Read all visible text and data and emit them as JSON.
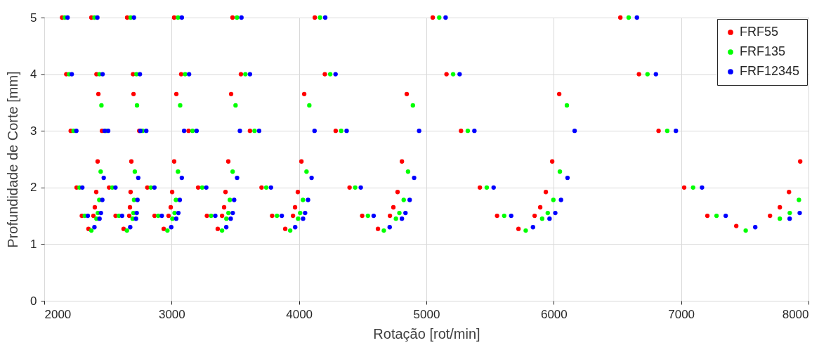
{
  "chart_data": {
    "type": "scatter",
    "xlabel": "Rotação [rot/min]",
    "ylabel": "Profundidade de Corte [mm]",
    "xlim": [
      2000,
      8000
    ],
    "xticks": [
      2000,
      3000,
      4000,
      5000,
      6000,
      7000,
      8000
    ],
    "ylim": [
      0,
      5
    ],
    "yticks": [
      0,
      1,
      2,
      3,
      4,
      5
    ],
    "grid": true,
    "legend": "top right",
    "marker": "circle",
    "series": [
      {
        "name": "FRF55",
        "color": "#ff0000",
        "x": [
          2140,
          2173,
          2208,
          2254,
          2295,
          2347,
          2386,
          2397,
          2408,
          2419,
          2425,
          2370,
          2410,
          2453,
          2509,
          2560,
          2623,
          2667,
          2673,
          2678,
          2684,
          2701,
          2651,
          2697,
          2746,
          2809,
          2866,
          2938,
          2976,
          2993,
          3004,
          3020,
          3037,
          3020,
          3075,
          3133,
          3208,
          3277,
          3362,
          3396,
          3412,
          3423,
          3445,
          3467,
          3478,
          3544,
          3615,
          3706,
          3789,
          3892,
          3953,
          3969,
          3991,
          4019,
          4041,
          4124,
          4203,
          4288,
          4397,
          4496,
          4620,
          4714,
          4741,
          4774,
          4808,
          4846,
          5050,
          5158,
          5272,
          5420,
          5555,
          5723,
          5850,
          5894,
          5938,
          5988,
          6043,
          6523,
          6669,
          6823,
          7024,
          7206,
          7433,
          7698,
          7775,
          7847,
          7935
        ],
        "values": [
          5,
          4,
          3,
          2,
          1.5,
          1.27,
          1.5,
          1.65,
          1.92,
          2.46,
          3.65,
          5,
          4,
          3,
          2,
          1.5,
          1.27,
          1.5,
          1.65,
          1.92,
          2.46,
          3.65,
          5,
          4,
          3,
          2,
          1.5,
          1.27,
          1.5,
          1.65,
          1.92,
          2.46,
          3.65,
          5,
          4,
          3,
          2,
          1.5,
          1.27,
          1.5,
          1.65,
          1.92,
          2.46,
          3.65,
          5,
          4,
          3,
          2,
          1.5,
          1.27,
          1.5,
          1.65,
          1.92,
          2.46,
          3.65,
          5,
          4,
          3,
          2,
          1.5,
          1.27,
          1.5,
          1.65,
          1.92,
          2.46,
          3.65,
          5,
          4,
          3,
          2,
          1.5,
          1.27,
          1.5,
          1.65,
          1.92,
          2.46,
          3.65,
          5,
          4,
          3,
          2,
          1.5,
          1.32,
          1.5,
          1.65,
          1.92,
          2.46
        ]
      },
      {
        "name": "FRF135",
        "color": "#00ff00",
        "x": [
          2161,
          2195,
          2230,
          2277,
          2318,
          2370,
          2410,
          2421,
          2432,
          2443,
          2449,
          2394,
          2434,
          2484,
          2534,
          2586,
          2649,
          2694,
          2700,
          2705,
          2711,
          2728,
          2678,
          2724,
          2773,
          2837,
          2895,
          2967,
          3006,
          3023,
          3034,
          3050,
          3067,
          3050,
          3106,
          3164,
          3240,
          3310,
          3396,
          3430,
          3446,
          3457,
          3479,
          3502,
          3513,
          3579,
          3651,
          3743,
          3827,
          3931,
          3993,
          4009,
          4031,
          4059,
          4081,
          4165,
          4245,
          4331,
          4441,
          4541,
          4666,
          4761,
          4788,
          4822,
          4856,
          4894,
          5101,
          5210,
          5325,
          5474,
          5611,
          5780,
          5909,
          5953,
          5997,
          6048,
          6103,
          6588,
          6736,
          6891,
          7094,
          7278,
          7507,
          7775,
          7853,
          7925
        ],
        "values": [
          5,
          4,
          3,
          2,
          1.5,
          1.24,
          1.45,
          1.55,
          1.78,
          2.28,
          3.45,
          5,
          4,
          3,
          2,
          1.5,
          1.24,
          1.45,
          1.55,
          1.78,
          2.28,
          3.45,
          5,
          4,
          3,
          2,
          1.5,
          1.24,
          1.45,
          1.55,
          1.78,
          2.28,
          3.45,
          5,
          4,
          3,
          2,
          1.5,
          1.24,
          1.45,
          1.55,
          1.78,
          2.28,
          3.45,
          5,
          4,
          3,
          2,
          1.5,
          1.24,
          1.45,
          1.55,
          1.78,
          2.28,
          3.45,
          5,
          4,
          3,
          2,
          1.5,
          1.24,
          1.45,
          1.55,
          1.78,
          2.28,
          3.45,
          5,
          4,
          3,
          2,
          1.5,
          1.24,
          1.45,
          1.55,
          1.78,
          2.28,
          3.45,
          5,
          4,
          3,
          2,
          1.5,
          1.24,
          1.45,
          1.55,
          1.78
        ]
      },
      {
        "name": "FRF12345",
        "color": "#0000ff",
        "x": [
          2183,
          2216,
          2252,
          2299,
          2342,
          2394,
          2434,
          2445,
          2456,
          2467,
          2474,
          2417,
          2458,
          2502,
          2559,
          2611,
          2675,
          2720,
          2726,
          2732,
          2738,
          2755,
          2704,
          2751,
          2801,
          2865,
          2923,
          2997,
          3036,
          3053,
          3064,
          3080,
          3098,
          3080,
          3137,
          3196,
          3272,
          3343,
          3429,
          3464,
          3480,
          3491,
          3514,
          3536,
          3548,
          3615,
          3687,
          3780,
          3865,
          3970,
          4032,
          4048,
          4071,
          4099,
          4122,
          4206,
          4287,
          4374,
          4485,
          4586,
          4712,
          4808,
          4836,
          4869,
          4904,
          4943,
          5151,
          5261,
          5377,
          5528,
          5666,
          5837,
          5967,
          6012,
          6057,
          6108,
          6164,
          6653,
          6802,
          6959,
          7164,
          7350,
          7582,
          7852,
          7931
        ],
        "values": [
          5,
          4,
          3,
          2,
          1.5,
          1.3,
          1.45,
          1.55,
          1.78,
          2.17,
          3.0,
          5,
          4,
          3,
          2,
          1.5,
          1.3,
          1.45,
          1.55,
          1.78,
          2.17,
          3.0,
          5,
          4,
          3,
          2,
          1.5,
          1.3,
          1.45,
          1.55,
          1.78,
          2.17,
          3.0,
          5,
          4,
          3,
          2,
          1.5,
          1.3,
          1.45,
          1.55,
          1.78,
          2.17,
          3.0,
          5,
          4,
          3,
          2,
          1.5,
          1.3,
          1.45,
          1.55,
          1.78,
          2.17,
          3.0,
          5,
          4,
          3,
          2,
          1.5,
          1.3,
          1.45,
          1.55,
          1.78,
          2.17,
          3.0,
          5,
          4,
          3,
          2,
          1.5,
          1.3,
          1.45,
          1.55,
          1.78,
          2.17,
          3.0,
          5,
          4,
          3,
          2,
          1.5,
          1.3,
          1.45,
          1.55
        ]
      }
    ]
  }
}
